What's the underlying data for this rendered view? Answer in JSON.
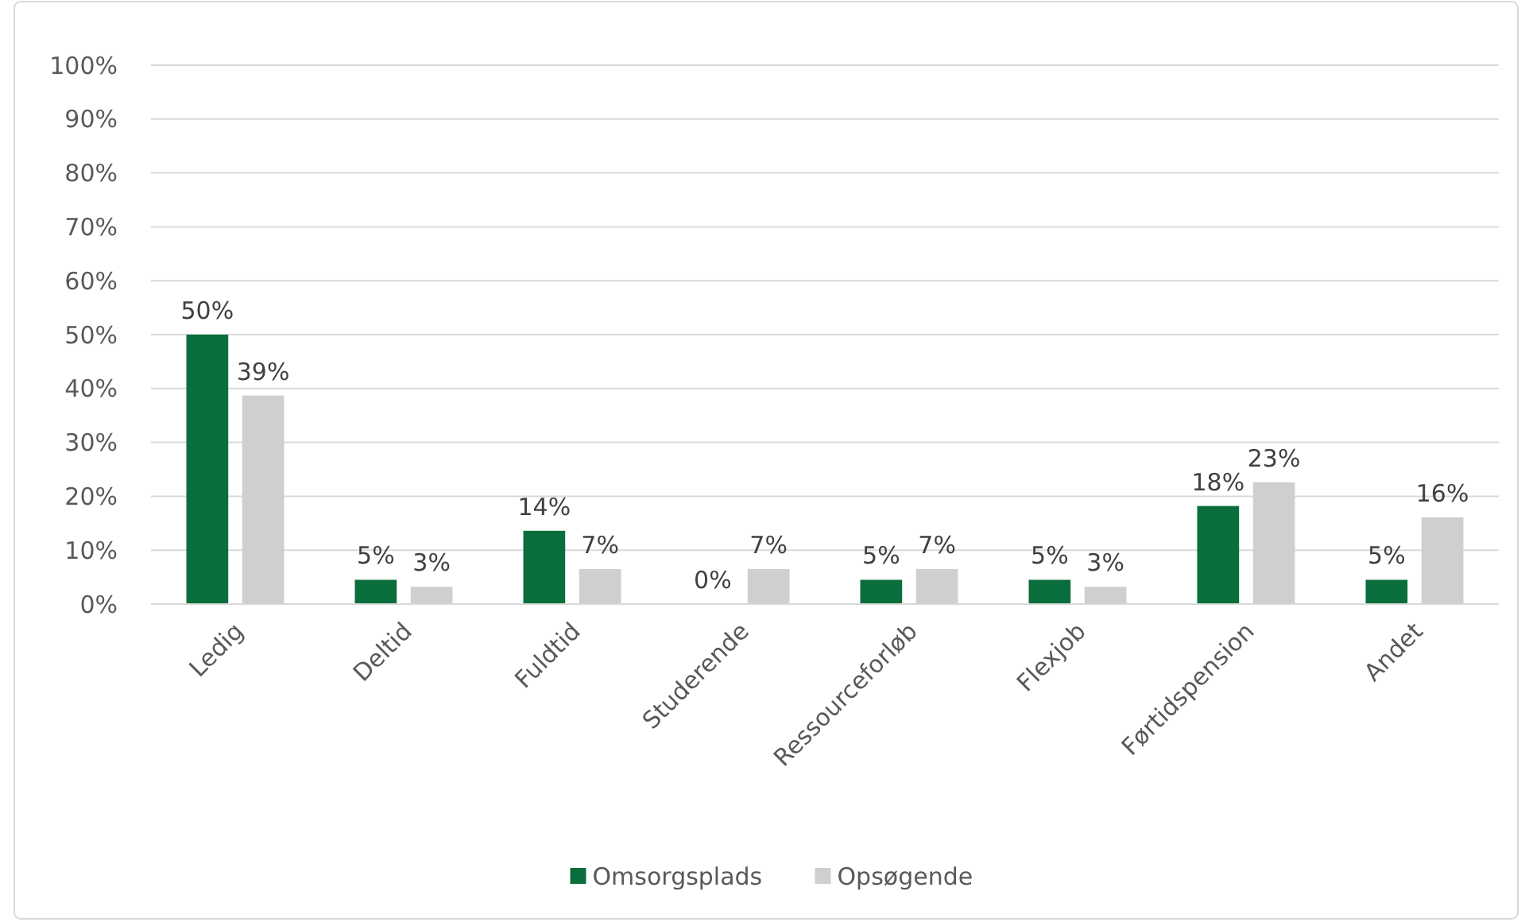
{
  "chart_data": {
    "type": "bar",
    "categories": [
      "Ledig",
      "Deltid",
      "Fuldtid",
      "Studerende",
      "Ressourceforløb",
      "Flexjob",
      "Førtidspension",
      "Andet"
    ],
    "series": [
      {
        "name": "Omsorgsplads",
        "color": "#0a6e3c",
        "values": [
          50,
          4.5,
          13.6,
          0,
          4.5,
          4.5,
          18.2,
          4.5
        ],
        "value_labels": [
          "50%",
          "5%",
          "14%",
          "0%",
          "5%",
          "5%",
          "18%",
          "5%"
        ]
      },
      {
        "name": "Opsøgende",
        "color": "#d0cece",
        "values": [
          38.7,
          3.2,
          6.5,
          6.5,
          6.5,
          3.2,
          22.6,
          16.1
        ],
        "value_labels": [
          "39%",
          "3%",
          "7%",
          "7%",
          "7%",
          "3%",
          "23%",
          "16%"
        ]
      }
    ],
    "ylim": [
      0,
      100
    ],
    "yticks": [
      {
        "value": 0,
        "label": "0%"
      },
      {
        "value": 10,
        "label": "10%"
      },
      {
        "value": 20,
        "label": "20%"
      },
      {
        "value": 30,
        "label": "30%"
      },
      {
        "value": 40,
        "label": "40%"
      },
      {
        "value": 50,
        "label": "50%"
      },
      {
        "value": 60,
        "label": "60%"
      },
      {
        "value": 70,
        "label": "70%"
      },
      {
        "value": 80,
        "label": "80%"
      },
      {
        "value": 90,
        "label": "90%"
      },
      {
        "value": 100,
        "label": "100%"
      }
    ],
    "grid": "y",
    "legend": "bottom"
  }
}
